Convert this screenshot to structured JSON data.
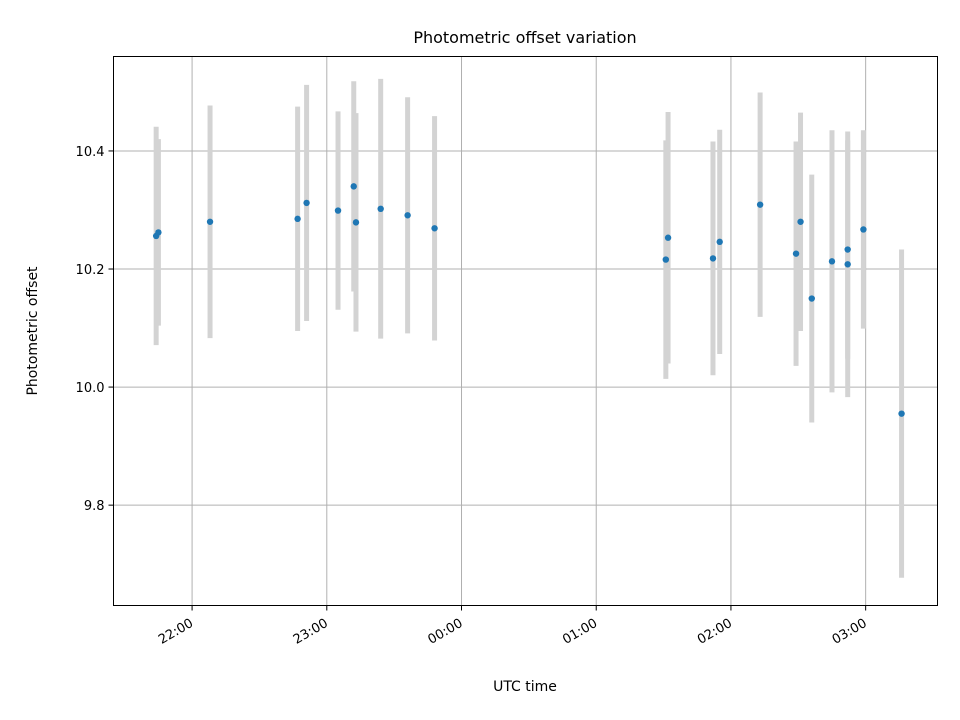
{
  "chart_data": {
    "type": "scatter",
    "title": "Photometric offset variation",
    "xlabel": "UTC time",
    "ylabel": "Photometric offset",
    "x_unit": "UTC clock time (HH:MM, 21:00 evening through 04:00 next morning)",
    "xlim": [
      "21:25",
      "03:32"
    ],
    "ylim": [
      9.63,
      10.56
    ],
    "x_ticks": [
      "22:00",
      "23:00",
      "00:00",
      "01:00",
      "02:00",
      "03:00"
    ],
    "y_ticks": [
      9.8,
      10.0,
      10.2,
      10.4
    ],
    "y_tick_labels": [
      "9.8",
      "10.0",
      "10.2",
      "10.4"
    ],
    "grid": true,
    "marker_color": "#1f77b4",
    "errorbar_color": "#d3d3d3",
    "points": [
      {
        "x": "21:44",
        "y": 10.256,
        "err": 0.185
      },
      {
        "x": "21:45",
        "y": 10.262,
        "err": 0.158
      },
      {
        "x": "22:08",
        "y": 10.28,
        "err": 0.197
      },
      {
        "x": "22:47",
        "y": 10.285,
        "err": 0.19
      },
      {
        "x": "22:51",
        "y": 10.312,
        "err": 0.2
      },
      {
        "x": "23:05",
        "y": 10.299,
        "err": 0.168
      },
      {
        "x": "23:12",
        "y": 10.34,
        "err": 0.178
      },
      {
        "x": "23:13",
        "y": 10.279,
        "err": 0.185
      },
      {
        "x": "23:24",
        "y": 10.302,
        "err": 0.22
      },
      {
        "x": "23:36",
        "y": 10.291,
        "err": 0.2
      },
      {
        "x": "23:48",
        "y": 10.269,
        "err": 0.19
      },
      {
        "x": "01:31",
        "y": 10.216,
        "err": 0.202
      },
      {
        "x": "01:32",
        "y": 10.253,
        "err": 0.213
      },
      {
        "x": "01:52",
        "y": 10.218,
        "err": 0.198
      },
      {
        "x": "01:55",
        "y": 10.246,
        "err": 0.19
      },
      {
        "x": "02:13",
        "y": 10.309,
        "err": 0.19
      },
      {
        "x": "02:29",
        "y": 10.226,
        "err": 0.19
      },
      {
        "x": "02:31",
        "y": 10.28,
        "err": 0.185
      },
      {
        "x": "02:36",
        "y": 10.15,
        "err": 0.21
      },
      {
        "x": "02:45",
        "y": 10.213,
        "err": 0.222
      },
      {
        "x": "02:52",
        "y": 10.233,
        "err": 0.185
      },
      {
        "x": "02:52",
        "y": 10.208,
        "err": 0.225
      },
      {
        "x": "02:59",
        "y": 10.267,
        "err": 0.168
      },
      {
        "x": "03:16",
        "y": 9.955,
        "err": 0.278
      }
    ]
  }
}
